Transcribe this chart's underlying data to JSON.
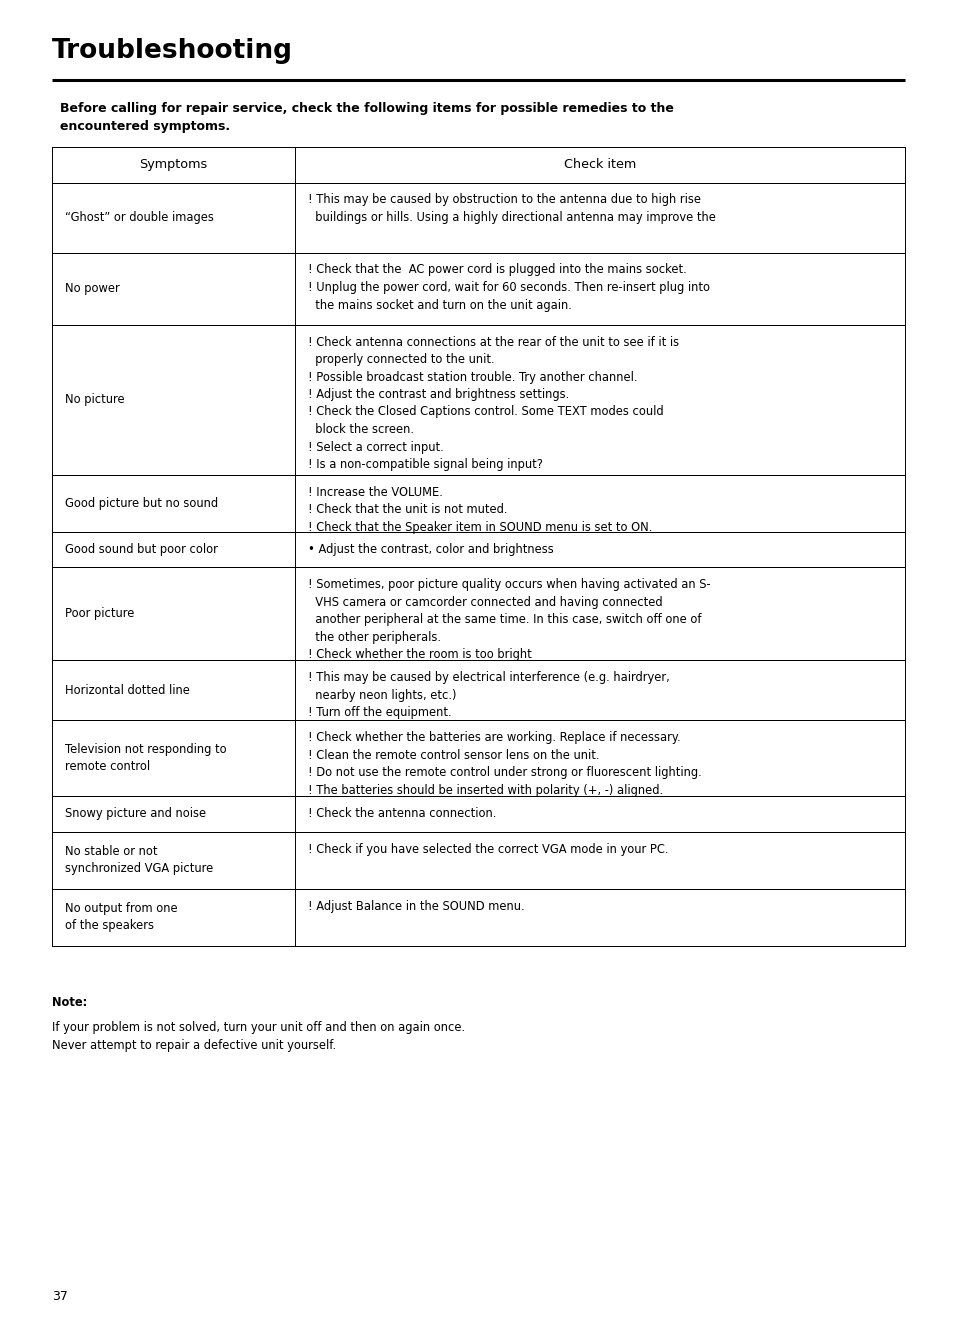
{
  "title": "Troubleshooting",
  "subtitle": "Before calling for repair service, check the following items for possible remedies to the\nencountered symptoms.",
  "col1_header": "Symptoms",
  "col2_header": "Check item",
  "rows": [
    {
      "symptom": "“Ghost” or double images",
      "check": "! This may be caused by obstruction to the antenna due to high rise\n  buildings or hills. Using a highly directional antenna may improve the"
    },
    {
      "symptom": "No power",
      "check": "! Check that the  AC power cord is plugged into the mains socket.\n! Unplug the power cord, wait for 60 seconds. Then re-insert plug into\n  the mains socket and turn on the unit again."
    },
    {
      "symptom": "No picture",
      "check": "! Check antenna connections at the rear of the unit to see if it is\n  properly connected to the unit.\n! Possible broadcast station trouble. Try another channel.\n! Adjust the contrast and brightness settings.\n! Check the Closed Captions control. Some TEXT modes could\n  block the screen.\n! Select a correct input.\n! Is a non-compatible signal being input?"
    },
    {
      "symptom": "Good picture but no sound",
      "check": "! Increase the VOLUME.\n! Check that the unit is not muted.\n! Check that the Speaker item in SOUND menu is set to ON."
    },
    {
      "symptom": "Good sound but poor color",
      "check": "• Adjust the contrast, color and brightness"
    },
    {
      "symptom": "Poor picture",
      "check": "! Sometimes, poor picture quality occurs when having activated an S-\n  VHS camera or camcorder connected and having connected\n  another peripheral at the same time. In this case, switch off one of\n  the other peripherals.\n! Check whether the room is too bright"
    },
    {
      "symptom": "Horizontal dotted line",
      "check": "! This may be caused by electrical interference (e.g. hairdryer,\n  nearby neon lights, etc.)\n! Turn off the equipment."
    },
    {
      "symptom": "Television not responding to\nremote control",
      "check": "! Check whether the batteries are working. Replace if necessary.\n! Clean the remote control sensor lens on the unit.\n! Do not use the remote control under strong or fluorescent lighting.\n! The batteries should be inserted with polarity (+, -) aligned."
    },
    {
      "symptom": "Snowy picture and noise",
      "check": "! Check the antenna connection."
    },
    {
      "symptom": "No stable or not\nsynchronized VGA picture",
      "check": "! Check if you have selected the correct VGA mode in your PC."
    },
    {
      "symptom": "No output from one\nof the speakers",
      "check": "! Adjust Balance in the SOUND menu."
    }
  ],
  "note_label": "Note:",
  "note_text": "If your problem is not solved, turn your unit off and then on again once.\nNever attempt to repair a defective unit yourself.",
  "page_number": "37",
  "bg_color": "#ffffff",
  "text_color": "#000000"
}
